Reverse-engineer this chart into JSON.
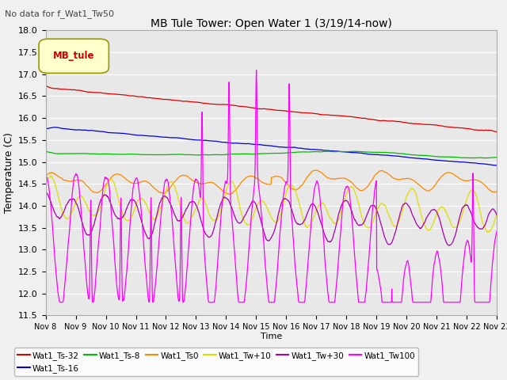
{
  "title": "MB Tule Tower: Open Water 1 (3/19/14-now)",
  "suptitle": "No data for f_Wat1_Tw50",
  "ylabel": "Temperature (C)",
  "xlabel": "Time",
  "ylim": [
    11.5,
    18.0
  ],
  "yticks": [
    11.5,
    12.0,
    12.5,
    13.0,
    13.5,
    14.0,
    14.5,
    15.0,
    15.5,
    16.0,
    16.5,
    17.0,
    17.5,
    18.0
  ],
  "xtick_labels": [
    "Nov 8",
    "Nov 9",
    "Nov 10",
    "Nov 11",
    "Nov 12",
    "Nov 13",
    "Nov 14",
    "Nov 15",
    "Nov 16",
    "Nov 17",
    "Nov 18",
    "Nov 19",
    "Nov 20",
    "Nov 21",
    "Nov 22",
    "Nov 23"
  ],
  "legend_label": "MB_tule",
  "series_colors": {
    "Wat1_Ts-32": "#dd0000",
    "Wat1_Ts-16": "#0000dd",
    "Wat1_Ts-8": "#00bb00",
    "Wat1_Ts0": "#ff8800",
    "Wat1_Tw+10": "#dddd00",
    "Wat1_Tw+30": "#aa00aa",
    "Wat1_Tw100": "#ff00ff"
  },
  "background_color": "#e8e8e8",
  "plot_bg_color": "#f0f0f0",
  "grid_color": "#ffffff"
}
